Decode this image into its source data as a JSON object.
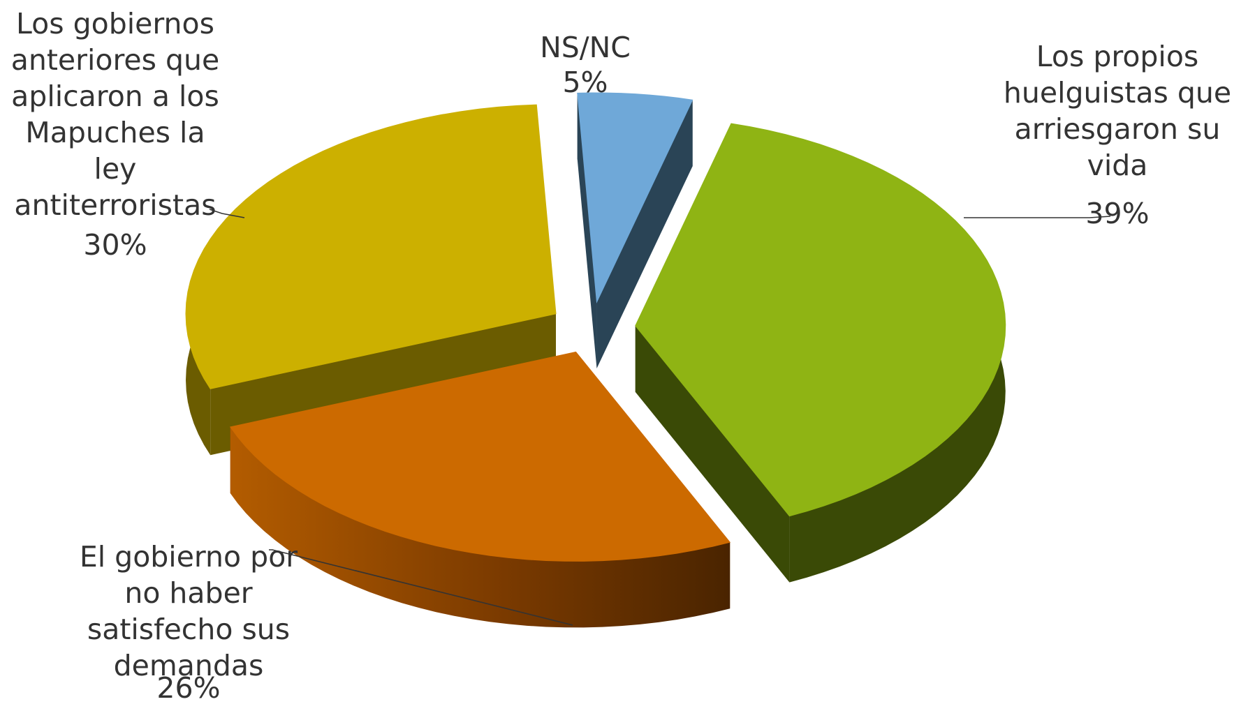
{
  "chart_data": {
    "type": "pie",
    "title": "",
    "style": "3d-exploded",
    "slices": [
      {
        "label_lines": [
          "Los propios",
          "huelguistas que",
          "arriesgaron su",
          "vida"
        ],
        "value": 39,
        "value_label": "39%",
        "color": "#8FB414",
        "side_color": "#3A4A06"
      },
      {
        "label_lines": [
          "El gobierno por",
          "no haber",
          "satisfecho sus",
          "demandas"
        ],
        "value": 26,
        "value_label": "26%",
        "color": "#CC6A00",
        "side_color": "#7A3A00"
      },
      {
        "label_lines": [
          "Los gobiernos",
          "anteriores que",
          "aplicaron a los",
          "Mapuches la",
          "ley",
          "antiterroristas"
        ],
        "value": 30,
        "value_label": "30%",
        "color": "#CCB000",
        "side_color": "#6B5C00"
      },
      {
        "label_lines": [
          "NS/NC"
        ],
        "value": 5,
        "value_label": "5%",
        "color": "#6FA8D8",
        "side_color": "#2A4456"
      }
    ]
  }
}
